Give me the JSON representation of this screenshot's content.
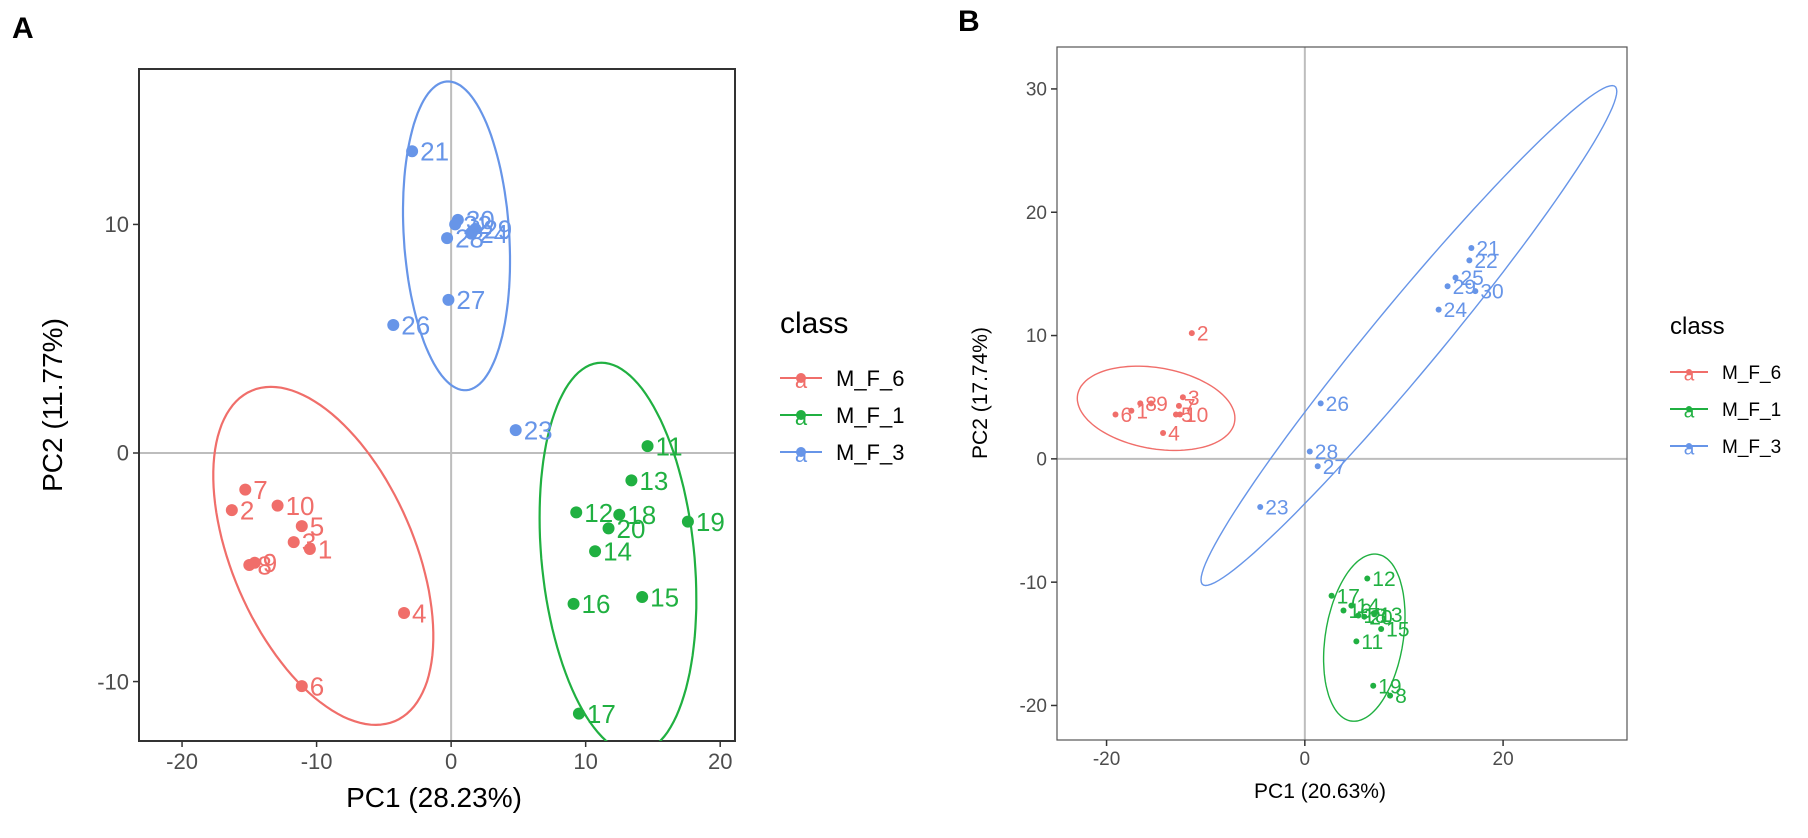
{
  "colors": {
    "M_F_6": "#F06E6A",
    "M_F_1": "#20B041",
    "M_F_3": "#6795E8",
    "axis": "#333333",
    "grid": "#BDBDBD"
  },
  "chart_data": [
    {
      "panel": "A",
      "type": "scatter",
      "xlabel": "PC1 (28.23%)",
      "ylabel": "PC2 (11.77%)",
      "xlim": [
        -23.2,
        21.1
      ],
      "ylim": [
        -12.6,
        16.8
      ],
      "xticks": [
        -20,
        -10,
        0,
        10,
        20
      ],
      "yticks": [
        -10,
        0,
        10
      ],
      "xtick_labels": [
        "-20",
        "-10",
        "0",
        "10",
        "20"
      ],
      "ytick_labels": [
        "-10",
        "0",
        "10"
      ],
      "legend": {
        "title": "class",
        "position": "right",
        "key_glyph": "a",
        "entries": [
          "M_F_6",
          "M_F_1",
          "M_F_3"
        ]
      },
      "series": [
        {
          "name": "M_F_6",
          "points": [
            {
              "id": "7",
              "x": -15.3,
              "y": -1.6
            },
            {
              "id": "2",
              "x": -16.3,
              "y": -2.5
            },
            {
              "id": "10",
              "x": -12.9,
              "y": -2.3
            },
            {
              "id": "5",
              "x": -11.1,
              "y": -3.2
            },
            {
              "id": "3",
              "x": -11.7,
              "y": -3.9
            },
            {
              "id": "1",
              "x": -10.5,
              "y": -4.2
            },
            {
              "id": "9",
              "x": -14.6,
              "y": -4.8
            },
            {
              "id": "8",
              "x": -15.0,
              "y": -4.9
            },
            {
              "id": "4",
              "x": -3.5,
              "y": -7.0
            },
            {
              "id": "6",
              "x": -11.1,
              "y": -10.2
            }
          ],
          "ellipse": {
            "cx": -9.5,
            "cy": -4.5,
            "rx": 9.5,
            "ry": 5.6,
            "angle": -39
          }
        },
        {
          "name": "M_F_1",
          "points": [
            {
              "id": "11",
              "x": 14.6,
              "y": 0.3
            },
            {
              "id": "13",
              "x": 13.4,
              "y": -1.2
            },
            {
              "id": "12",
              "x": 9.3,
              "y": -2.6
            },
            {
              "id": "18",
              "x": 12.5,
              "y": -2.7
            },
            {
              "id": "20",
              "x": 11.7,
              "y": -3.3
            },
            {
              "id": "19",
              "x": 17.6,
              "y": -3.0
            },
            {
              "id": "14",
              "x": 10.7,
              "y": -4.3
            },
            {
              "id": "16",
              "x": 9.1,
              "y": -6.6
            },
            {
              "id": "15",
              "x": 14.2,
              "y": -6.3
            },
            {
              "id": "17",
              "x": 9.5,
              "y": -11.4
            }
          ],
          "ellipse": {
            "cx": 12.4,
            "cy": -4.6,
            "rx": 5.6,
            "ry": 8.7,
            "angle": 14
          }
        },
        {
          "name": "M_F_3",
          "points": [
            {
              "id": "21",
              "x": -2.9,
              "y": 13.2
            },
            {
              "id": "30",
              "x": 0.5,
              "y": 10.2
            },
            {
              "id": "22",
              "x": 0.3,
              "y": 10.0
            },
            {
              "id": "29",
              "x": 1.8,
              "y": 9.8
            },
            {
              "id": "24",
              "x": 1.5,
              "y": 9.6
            },
            {
              "id": "28",
              "x": -0.3,
              "y": 9.4
            },
            {
              "id": "27",
              "x": -0.2,
              "y": 6.7
            },
            {
              "id": "26",
              "x": -4.3,
              "y": 5.6
            },
            {
              "id": "23",
              "x": 4.8,
              "y": 1.0
            }
          ],
          "ellipse": {
            "cx": 0.4,
            "cy": 9.5,
            "rx": 3.9,
            "ry": 6.8,
            "angle": 8
          }
        }
      ]
    },
    {
      "panel": "B",
      "type": "scatter",
      "xlabel": "PC1 (20.63%)",
      "ylabel": "PC2 (17.74%)",
      "xlim": [
        -25,
        32.5
      ],
      "ylim": [
        -22.8,
        33.4
      ],
      "xticks": [
        -20,
        0,
        20
      ],
      "yticks": [
        -20,
        -10,
        0,
        10,
        20,
        30
      ],
      "xtick_labels": [
        "-20",
        "0",
        "20"
      ],
      "ytick_labels": [
        "-20",
        "-10",
        "0",
        "10",
        "20",
        "30"
      ],
      "legend": {
        "title": "class",
        "position": "right",
        "key_glyph": "a",
        "entries": [
          "M_F_6",
          "M_F_1",
          "M_F_3"
        ]
      },
      "series": [
        {
          "name": "M_F_6",
          "points": [
            {
              "id": "2",
              "x": -11.4,
              "y": 10.2
            },
            {
              "id": "8",
              "x": -16.6,
              "y": 4.5
            },
            {
              "id": "9",
              "x": -15.5,
              "y": 4.5
            },
            {
              "id": "3",
              "x": -12.3,
              "y": 5.0
            },
            {
              "id": "7",
              "x": -12.7,
              "y": 4.3
            },
            {
              "id": "6",
              "x": -19.1,
              "y": 3.6
            },
            {
              "id": "1",
              "x": -17.5,
              "y": 3.9
            },
            {
              "id": "5",
              "x": -13.0,
              "y": 3.6
            },
            {
              "id": "10",
              "x": -12.6,
              "y": 3.6
            },
            {
              "id": "4",
              "x": -14.3,
              "y": 2.1
            }
          ],
          "ellipse": {
            "cx": -15.0,
            "cy": 4.1,
            "rx": 8.0,
            "ry": 3.3,
            "angle": -7
          }
        },
        {
          "name": "M_F_1",
          "points": [
            {
              "id": "12",
              "x": 6.3,
              "y": -9.7
            },
            {
              "id": "17",
              "x": 2.7,
              "y": -11.1
            },
            {
              "id": "14",
              "x": 4.7,
              "y": -11.9
            },
            {
              "id": "16",
              "x": 3.9,
              "y": -12.3
            },
            {
              "id": "18",
              "x": 5.4,
              "y": -12.7
            },
            {
              "id": "20",
              "x": 6.0,
              "y": -12.8
            },
            {
              "id": "13",
              "x": 7.0,
              "y": -12.6
            },
            {
              "id": "15",
              "x": 7.7,
              "y": -13.8
            },
            {
              "id": "11",
              "x": 5.2,
              "y": -14.8
            },
            {
              "id": "19",
              "x": 6.9,
              "y": -18.4
            },
            {
              "id": "8",
              "x": 8.6,
              "y": -19.2
            }
          ],
          "ellipse": {
            "cx": 6.0,
            "cy": -14.5,
            "rx": 3.9,
            "ry": 6.9,
            "angle": -13
          }
        },
        {
          "name": "M_F_3",
          "points": [
            {
              "id": "21",
              "x": 16.8,
              "y": 17.1
            },
            {
              "id": "22",
              "x": 16.6,
              "y": 16.1
            },
            {
              "id": "25",
              "x": 15.2,
              "y": 14.7
            },
            {
              "id": "29",
              "x": 14.4,
              "y": 14.0
            },
            {
              "id": "30",
              "x": 17.2,
              "y": 13.6
            },
            {
              "id": "24",
              "x": 13.5,
              "y": 12.1
            },
            {
              "id": "26",
              "x": 1.6,
              "y": 4.5
            },
            {
              "id": "28",
              "x": 0.5,
              "y": 0.6
            },
            {
              "id": "27",
              "x": 1.3,
              "y": -0.6
            },
            {
              "id": "23",
              "x": -4.5,
              "y": -3.9
            }
          ],
          "ellipse": {
            "cx": 10.5,
            "cy": 10.0,
            "rx": 29.0,
            "ry": 3.1,
            "angle": 44
          }
        }
      ]
    }
  ]
}
